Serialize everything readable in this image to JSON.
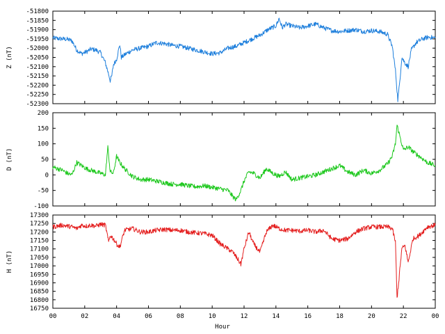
{
  "chart_data": [
    {
      "type": "line",
      "xlabel": "Hour",
      "ylabel": "Z (nT)",
      "ylim": [
        -52300,
        -51800
      ],
      "yticks": [
        -51800,
        -51850,
        -51900,
        -51950,
        -52000,
        -52050,
        -52100,
        -52150,
        -52200,
        -52250,
        -52300
      ],
      "color": "#1e7fdc",
      "series": [
        {
          "x": [
            0,
            0.3,
            0.6,
            0.9,
            1.2,
            1.5,
            1.8,
            2.1,
            2.4,
            2.7,
            3.0,
            3.3,
            3.5,
            3.6,
            3.7,
            3.8,
            4.0,
            4.2,
            4.3,
            4.6,
            5.0,
            5.5,
            6.0,
            6.5,
            7.0,
            7.5,
            8.0,
            8.5,
            9.0,
            9.5,
            10.0,
            10.5,
            11.0,
            11.5,
            12.0,
            12.5,
            13.0,
            13.5,
            14.0,
            14.2,
            14.4,
            14.6,
            15.0,
            15.5,
            16.0,
            16.5,
            17.0,
            17.5,
            18.0,
            18.5,
            19.0,
            19.5,
            20.0,
            20.5,
            21.0,
            21.3,
            21.5,
            21.65,
            21.75,
            21.9,
            22.1,
            22.3,
            22.5,
            22.8,
            23.2,
            23.6,
            24.0
          ],
          "y": [
            -51945,
            -51948,
            -51950,
            -51952,
            -51960,
            -52010,
            -52030,
            -52020,
            -52005,
            -52010,
            -52025,
            -52080,
            -52140,
            -52175,
            -52150,
            -52090,
            -52060,
            -51980,
            -52050,
            -52030,
            -52010,
            -52000,
            -51990,
            -51970,
            -51975,
            -51985,
            -51990,
            -52000,
            -52010,
            -52020,
            -52030,
            -52025,
            -52000,
            -51990,
            -51970,
            -51950,
            -51930,
            -51900,
            -51880,
            -51840,
            -51890,
            -51870,
            -51880,
            -51890,
            -51880,
            -51870,
            -51890,
            -51905,
            -51910,
            -51905,
            -51900,
            -51910,
            -51905,
            -51910,
            -51925,
            -51990,
            -52120,
            -52280,
            -52200,
            -52050,
            -52080,
            -52100,
            -52010,
            -51970,
            -51950,
            -51940,
            -51945
          ]
        }
      ]
    },
    {
      "type": "line",
      "xlabel": "Hour",
      "ylabel": "D (nT)",
      "ylim": [
        -100,
        200
      ],
      "yticks": [
        200,
        150,
        100,
        50,
        0,
        -50,
        -100
      ],
      "color": "#1ec81e",
      "series": [
        {
          "x": [
            0,
            0.3,
            0.6,
            0.9,
            1.2,
            1.5,
            1.8,
            2.1,
            2.4,
            2.7,
            3.0,
            3.3,
            3.45,
            3.6,
            3.8,
            4.0,
            4.2,
            4.5,
            5.0,
            5.5,
            6.0,
            6.5,
            7.0,
            7.5,
            8.0,
            8.5,
            9.0,
            9.5,
            10.0,
            10.5,
            11.0,
            11.3,
            11.5,
            11.8,
            12.0,
            12.3,
            12.6,
            13.0,
            13.4,
            13.8,
            14.2,
            14.6,
            15.0,
            15.5,
            16.0,
            16.5,
            17.0,
            17.5,
            18.0,
            18.5,
            19.0,
            19.5,
            20.0,
            20.5,
            21.0,
            21.3,
            21.5,
            21.6,
            21.8,
            22.0,
            22.3,
            22.6,
            23.0,
            23.5,
            24.0
          ],
          "y": [
            25,
            20,
            15,
            5,
            0,
            40,
            30,
            20,
            15,
            10,
            5,
            0,
            90,
            10,
            5,
            60,
            40,
            20,
            -5,
            -15,
            -15,
            -20,
            -25,
            -30,
            -30,
            -35,
            -38,
            -35,
            -40,
            -45,
            -50,
            -70,
            -80,
            -50,
            -20,
            10,
            5,
            -10,
            20,
            5,
            -5,
            10,
            -15,
            -10,
            -5,
            0,
            10,
            20,
            30,
            10,
            0,
            15,
            5,
            15,
            35,
            60,
            100,
            160,
            120,
            80,
            90,
            75,
            60,
            40,
            30
          ]
        }
      ]
    },
    {
      "type": "line",
      "xlabel": "Hour",
      "ylabel": "H (nT)",
      "ylim": [
        16750,
        17300
      ],
      "yticks": [
        17300,
        17250,
        17200,
        17150,
        17100,
        17050,
        17000,
        16950,
        16900,
        16850,
        16800,
        16750
      ],
      "xticks": [
        "00",
        "02",
        "04",
        "06",
        "08",
        "10",
        "12",
        "14",
        "16",
        "18",
        "20",
        "22",
        "00"
      ],
      "color": "#e41e1e",
      "series": [
        {
          "x": [
            0,
            0.3,
            0.6,
            0.9,
            1.2,
            1.5,
            1.8,
            2.1,
            2.4,
            2.7,
            3.0,
            3.3,
            3.5,
            3.6,
            3.8,
            4.0,
            4.2,
            4.5,
            5.0,
            5.5,
            6.0,
            6.5,
            7.0,
            7.5,
            8.0,
            8.5,
            9.0,
            9.5,
            10.0,
            10.5,
            11.0,
            11.3,
            11.6,
            11.8,
            12.0,
            12.3,
            12.6,
            13.0,
            13.4,
            13.8,
            14.2,
            14.6,
            15.0,
            15.5,
            16.0,
            16.5,
            17.0,
            17.5,
            18.0,
            18.5,
            19.0,
            19.5,
            20.0,
            20.5,
            21.0,
            21.3,
            21.5,
            21.6,
            21.7,
            21.9,
            22.1,
            22.3,
            22.6,
            23.0,
            23.5,
            24.0
          ],
          "y": [
            17230,
            17235,
            17240,
            17235,
            17230,
            17220,
            17240,
            17235,
            17240,
            17235,
            17245,
            17240,
            17140,
            17180,
            17160,
            17130,
            17110,
            17210,
            17220,
            17200,
            17200,
            17210,
            17215,
            17210,
            17210,
            17200,
            17195,
            17190,
            17180,
            17130,
            17100,
            17080,
            17040,
            17010,
            17100,
            17200,
            17130,
            17080,
            17200,
            17240,
            17220,
            17210,
            17210,
            17205,
            17210,
            17200,
            17210,
            17160,
            17150,
            17160,
            17200,
            17220,
            17230,
            17230,
            17230,
            17220,
            17140,
            16810,
            16900,
            17100,
            17120,
            17020,
            17160,
            17180,
            17230,
            17240
          ]
        }
      ]
    }
  ]
}
